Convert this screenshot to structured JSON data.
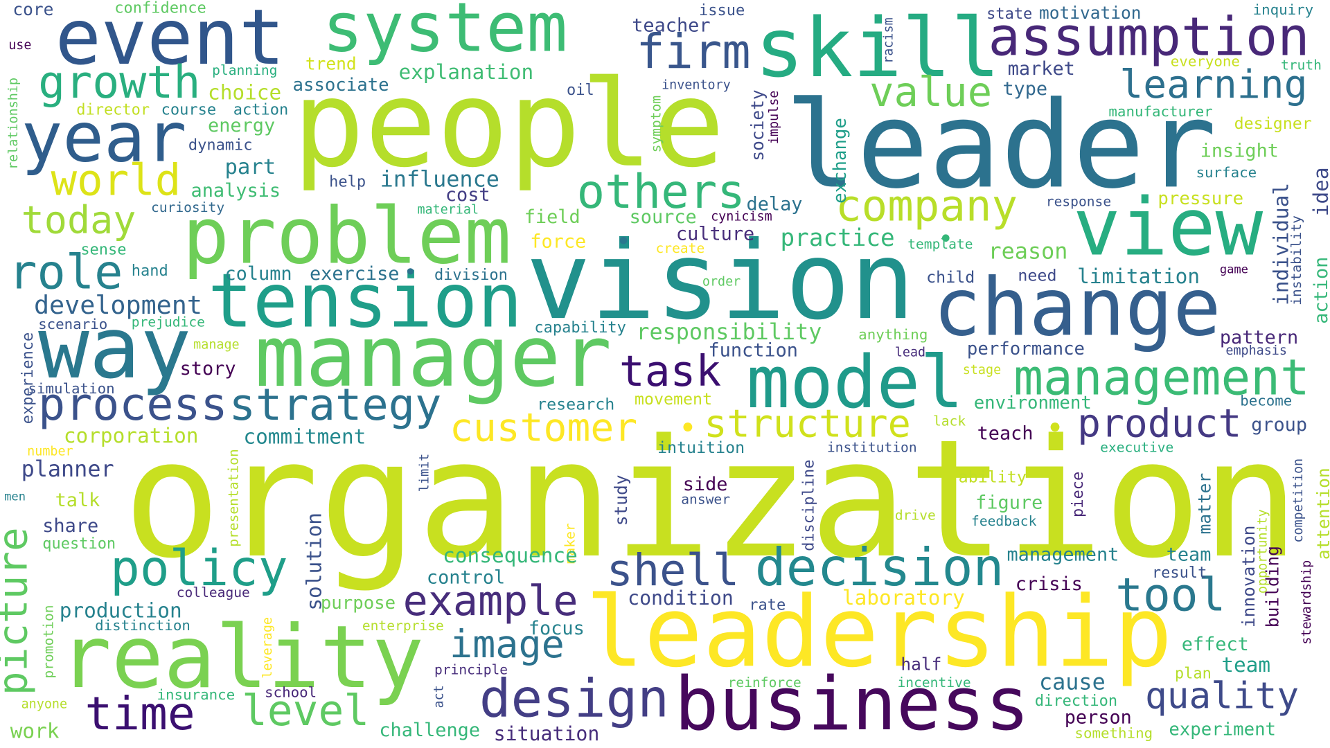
{
  "words": [
    "organization",
    "leader",
    "people",
    "vision",
    "leadership",
    "reality",
    "business",
    "manager",
    "problem",
    "tension",
    "change",
    "skill",
    "system",
    "event",
    "assumption",
    "year",
    "way",
    "view",
    "model",
    "decision",
    "design",
    "shell",
    "policy",
    "picture",
    "time",
    "level",
    "example",
    "image",
    "tool",
    "quality",
    "product",
    "management",
    "customer",
    "structure",
    "process",
    "strategy",
    "task",
    "company",
    "others",
    "value",
    "learning",
    "firm",
    "growth",
    "world",
    "today",
    "role",
    "development",
    "core",
    "confidence",
    "use",
    "planning",
    "trend",
    "explanation",
    "choice",
    "associate",
    "oil",
    "director",
    "course",
    "action",
    "energy",
    "dynamic",
    "part",
    "relationship",
    "analysis",
    "curiosity",
    "help",
    "influence",
    "cost",
    "material",
    "field",
    "source",
    "cynicism",
    "delay",
    "force",
    "culture",
    "create",
    "practice",
    "response",
    "template",
    "pressure",
    "reason",
    "limitation",
    "individual",
    "idea",
    "action",
    "instability",
    "game",
    "need",
    "child",
    "order",
    "division",
    "column",
    "exercise",
    "•",
    "•",
    "•",
    "•",
    "•",
    "sense",
    "hand",
    "scenario",
    "prejudice",
    "capability",
    "responsibility",
    "function",
    "anything",
    "performance",
    "lead",
    "pattern",
    "emphasis",
    "manage",
    "experience",
    "story",
    "simulation",
    "stage",
    "movement",
    "research",
    "environment",
    "become",
    "lack",
    "group",
    "teach",
    "corporation",
    "commitment",
    "intuition",
    "institution",
    "executive",
    "number",
    "planner",
    "presentation",
    "limit",
    "solution",
    "discipline",
    "piece",
    "building",
    "competition",
    "attention",
    "opportunity",
    "stewardship",
    "innovation",
    "matter",
    "side",
    "answer",
    "study",
    "ability",
    "figure",
    "talk",
    "men",
    "share",
    "question",
    "drive",
    "feedback",
    "maker",
    "consequence",
    "management",
    "team",
    "control",
    "colleague",
    "result",
    "crisis",
    "promotion",
    "leverage",
    "condition",
    "laboratory",
    "purpose",
    "rate",
    "production",
    "distinction",
    "enterprise",
    "focus",
    "effect",
    "team",
    "half",
    "cause",
    "principle",
    "plan",
    "reinforce",
    "incentive",
    "insurance",
    "school",
    "act",
    "anyone",
    "direction",
    "person",
    "work",
    "challenge",
    "situation",
    "something",
    "experiment",
    "state",
    "motivation",
    "inquiry",
    "issue",
    "teacher",
    "racism",
    "market",
    "everyone",
    "truth",
    "type",
    "inventory",
    "symptom",
    "impulse",
    "manufacturer",
    "designer",
    "society",
    "exchange",
    "insight",
    "surface"
  ]
}
